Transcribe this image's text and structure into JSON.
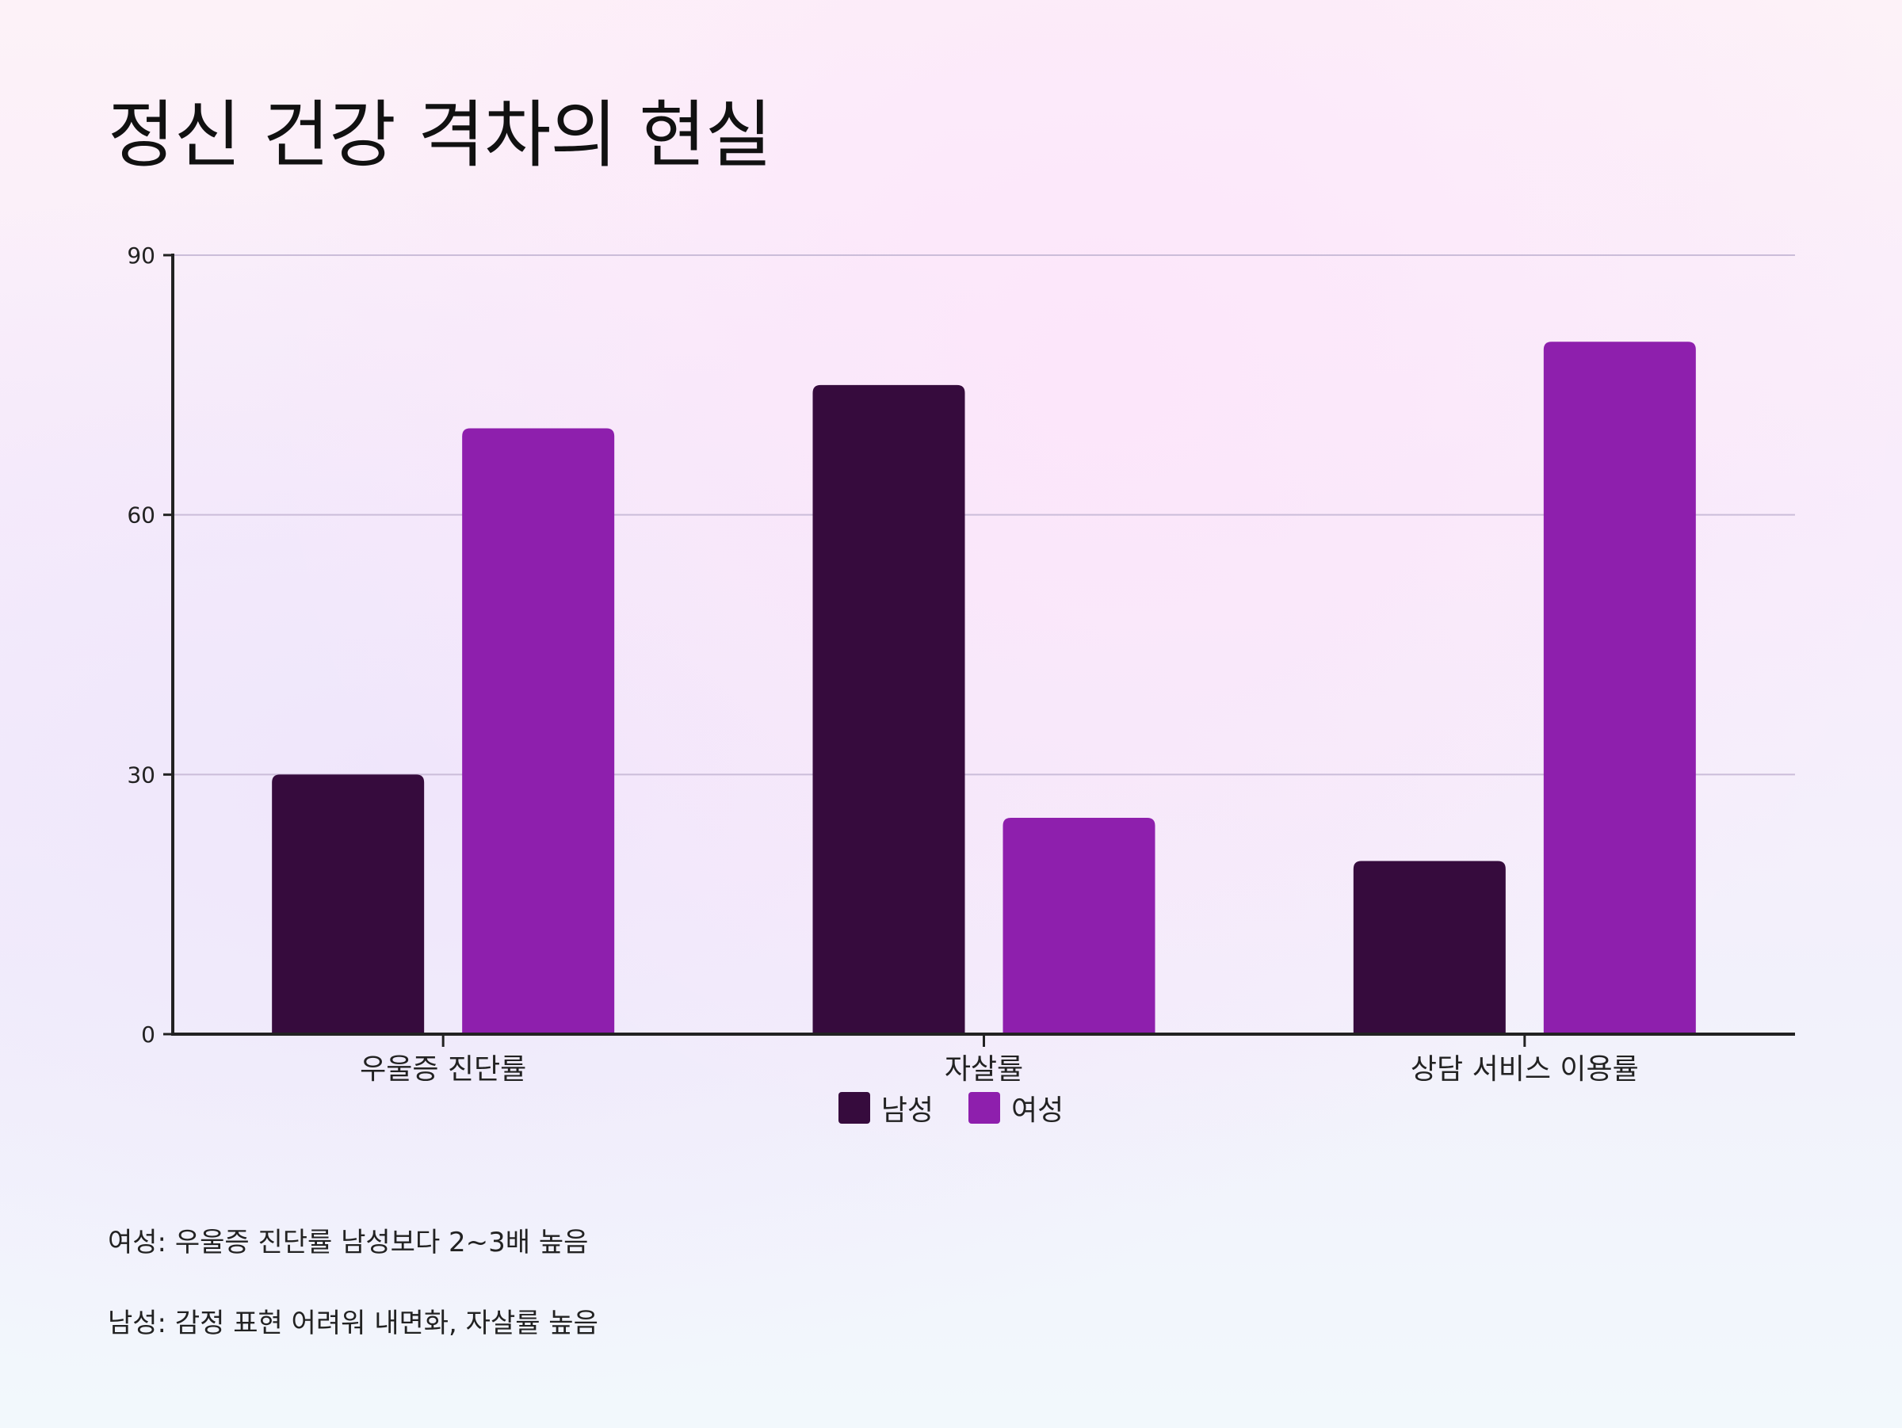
{
  "title": "정신 건강 격차의 현실",
  "chart_data": {
    "type": "bar",
    "categories": [
      "우울증 진단률",
      "자살률",
      "상담 서비스 이용률"
    ],
    "series": [
      {
        "name": "남성",
        "color": "#360b3d",
        "values": [
          30,
          75,
          20
        ]
      },
      {
        "name": "여성",
        "color": "#8e1fad",
        "values": [
          70,
          25,
          80
        ]
      }
    ],
    "ylim": [
      0,
      90
    ],
    "yticks": [
      0,
      30,
      60,
      90
    ],
    "grid": true,
    "legend_position": "bottom-center"
  },
  "notes": [
    "여성: 우울증 진단률 남성보다 2~3배 높음",
    "남성: 감정 표현 어려워 내면화, 자살률 높음"
  ]
}
